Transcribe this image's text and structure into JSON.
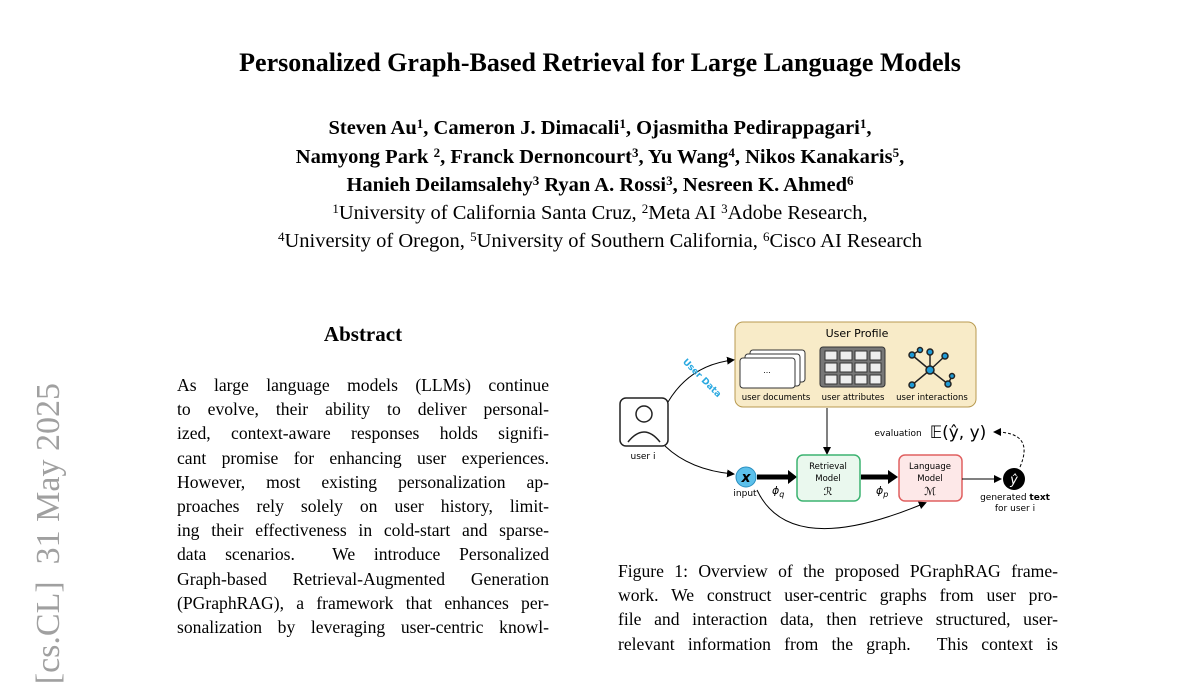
{
  "header": {
    "title": "Personalized Graph-Based Retrieval for Large Language Models",
    "authors": [
      [
        "Steven Au",
        {
          "sup": "1"
        },
        ", Cameron J. Dimacali",
        {
          "sup": "1"
        },
        ", Ojasmitha Pedirappagari",
        {
          "sup": "1"
        },
        ","
      ],
      [
        "Namyong Park ",
        {
          "sup": "2"
        },
        ", Franck Dernoncourt",
        {
          "sup": "3"
        },
        ", Yu Wang",
        {
          "sup": "4"
        },
        ", Nikos Kanakaris",
        {
          "sup": "5"
        },
        ","
      ],
      [
        "Hanieh Deilamsalehy",
        {
          "sup": "3"
        },
        " Ryan A. Rossi",
        {
          "sup": "3"
        },
        ", Nesreen K. Ahmed",
        {
          "sup": "6"
        }
      ]
    ],
    "affiliations": [
      [
        {
          "sup": "1"
        },
        "University of California Santa Cruz, ",
        {
          "sup": "2"
        },
        "Meta AI ",
        {
          "sup": "3"
        },
        "Adobe Research,"
      ],
      [
        {
          "sup": "4"
        },
        "University of Oregon, ",
        {
          "sup": "5"
        },
        "University of Southern California, ",
        {
          "sup": "6"
        },
        "Cisco AI Research"
      ]
    ]
  },
  "stamp": "[cs.CL]  31 May 2025",
  "abstract": {
    "heading": "Abstract",
    "lines": [
      "As large language models (LLMs) continue",
      "to evolve, their ability to deliver personal-",
      "ized, context-aware responses holds signifi-",
      "cant promise for enhancing user experiences.",
      "However, most existing personalization ap-",
      "proaches rely solely on user history, limit-",
      "ing their effectiveness in cold-start and sparse-",
      "data scenarios.  We introduce Personalized",
      "Graph-based Retrieval-Augmented Generation",
      "(PGraphRAG), a framework that enhances per-",
      "sonalization by leveraging user-centric knowl-"
    ]
  },
  "figure": {
    "labels": {
      "profile": "User Profile",
      "user_data": "User Data",
      "documents": "user documents",
      "attributes": "user attributes",
      "interactions": "user interactions",
      "user": "user i",
      "evaluation": "evaluation",
      "expectation": "𝔼(ŷ, y)",
      "input_symbol": "x",
      "input": "input",
      "phi_q": {
        "base": "ϕ",
        "sub": "q"
      },
      "phi_p": {
        "base": "ϕ",
        "sub": "p"
      },
      "retrieval": [
        "Retrieval",
        "Model",
        "ℛ"
      ],
      "language": [
        "Language",
        "Model",
        "ℳ"
      ],
      "output_symbol": "ŷ",
      "generated": [
        "generated ",
        "text"
      ],
      "for_user": "for user i",
      "doc_dots": "..."
    },
    "caption": [
      "Figure 1: Overview of the proposed PGraphRAG frame-",
      "work. We construct user-centric graphs from user pro-",
      "file and interaction data, then retrieve structured, user-",
      "relevant information from the graph.  This context is"
    ]
  }
}
